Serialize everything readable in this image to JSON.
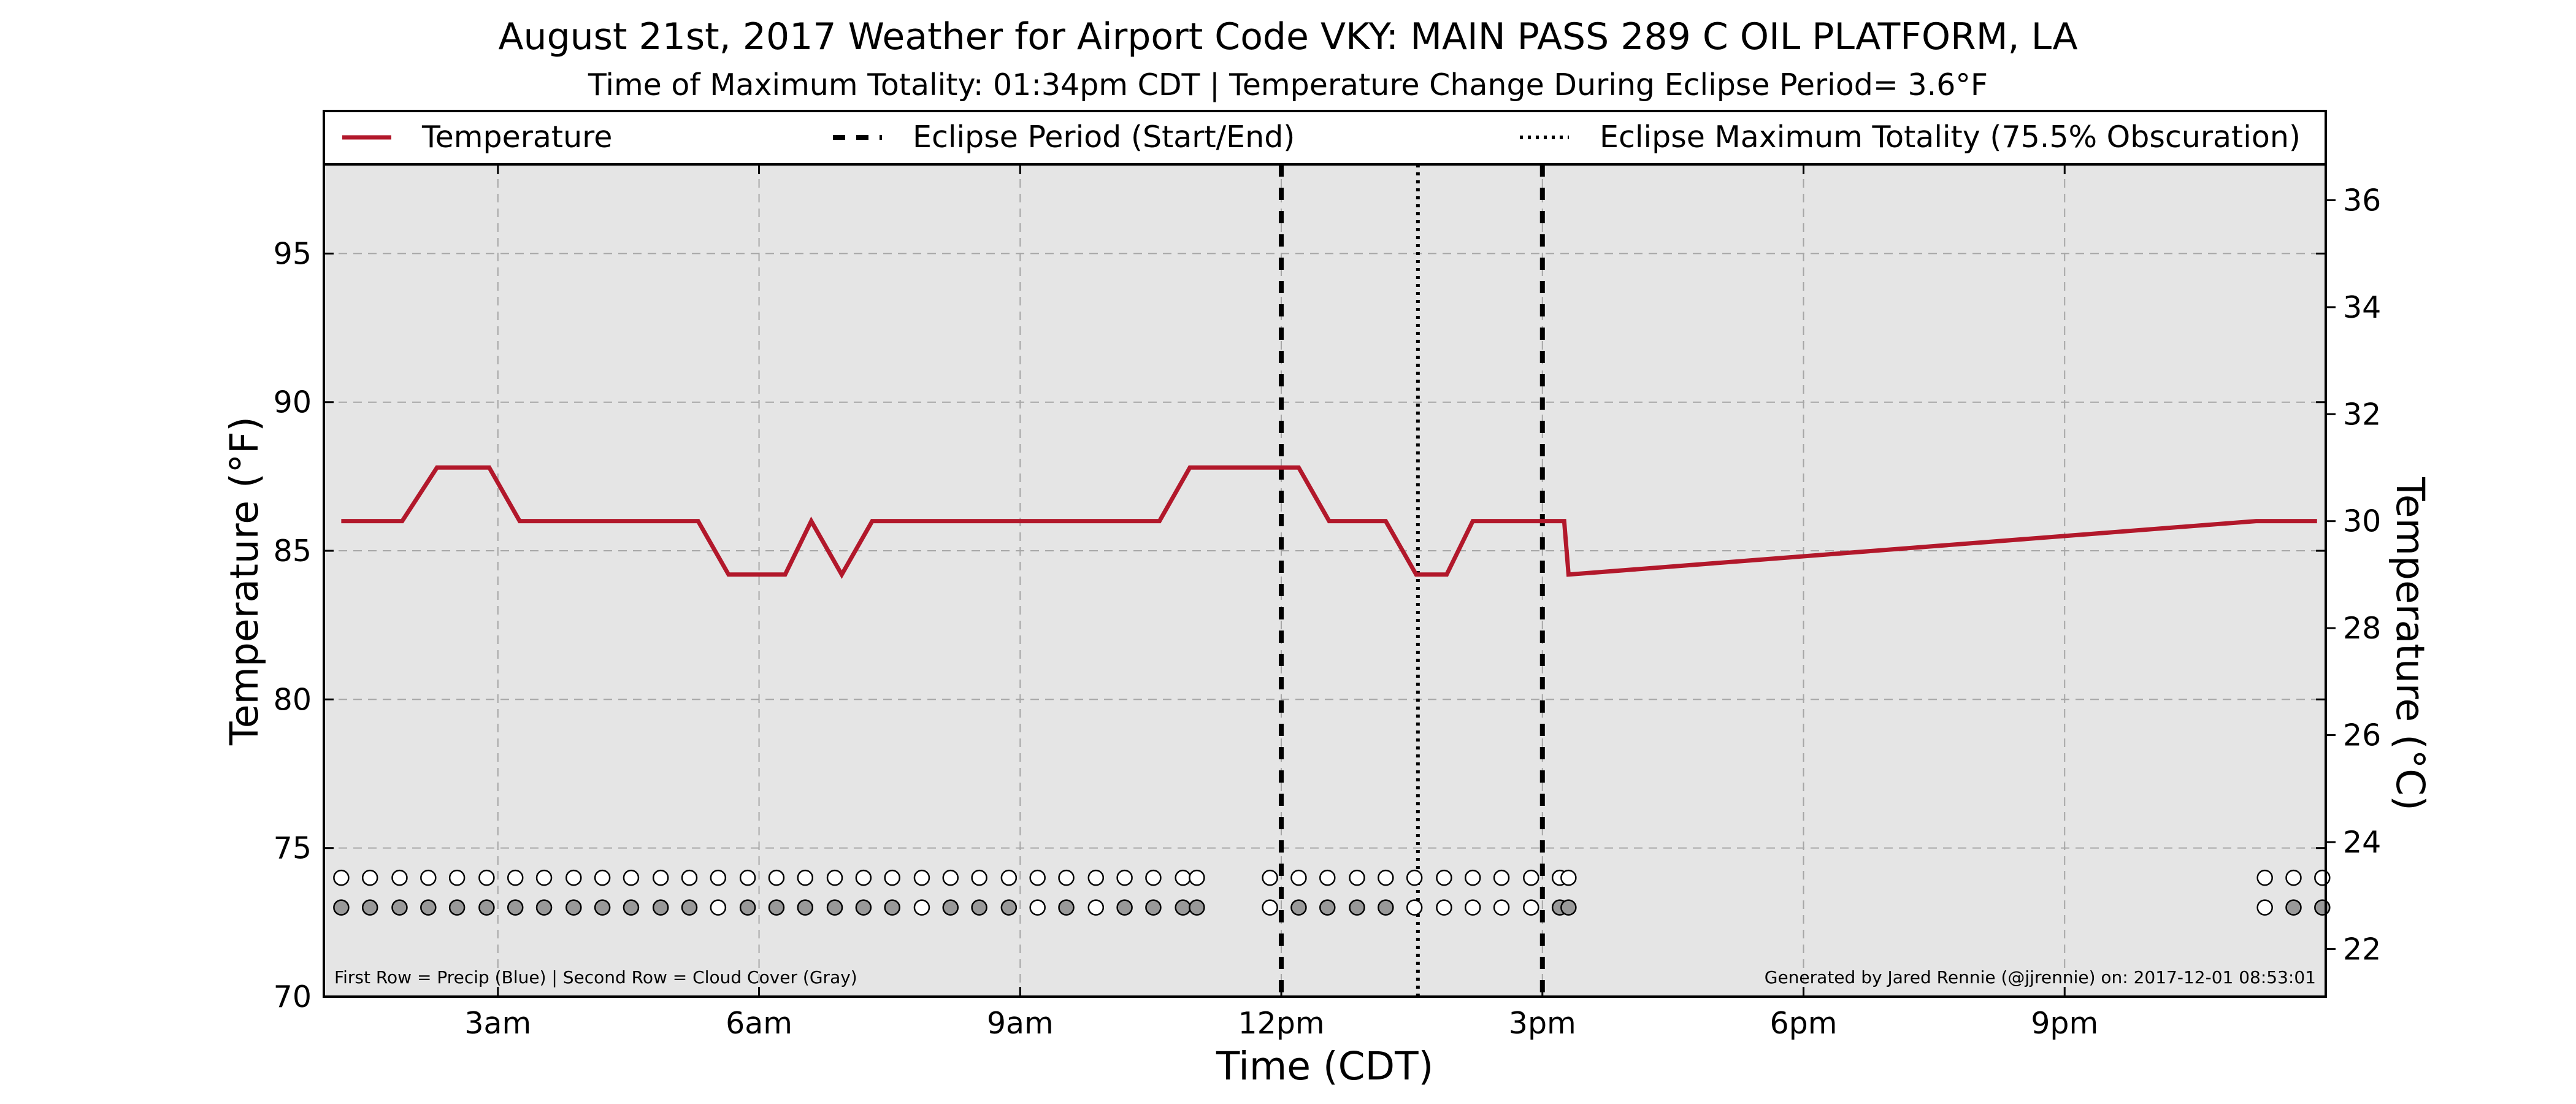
{
  "chart_data": {
    "type": "line",
    "title": "August 21st, 2017 Weather for Airport Code VKY: MAIN PASS 289 C OIL PLATFORM, LA",
    "subtitle": "Time of Maximum Totality: 01:34pm CDT | Temperature Change During Eclipse Period= 3.6°F",
    "xlabel": "Time (CDT)",
    "ylabel_left": "Temperature (°F)",
    "ylabel_right": "Temperature (°C)",
    "x_unit": "hours since midnight CDT",
    "xlim": [
      1.0,
      24.0
    ],
    "ylim": [
      70,
      98
    ],
    "ylim_celsius": [
      21.11,
      36.67
    ],
    "x_ticks": [
      {
        "value": 3,
        "label": "3am"
      },
      {
        "value": 6,
        "label": "6am"
      },
      {
        "value": 9,
        "label": "9am"
      },
      {
        "value": 12,
        "label": "12pm"
      },
      {
        "value": 15,
        "label": "3pm"
      },
      {
        "value": 18,
        "label": "6pm"
      },
      {
        "value": 21,
        "label": "9pm"
      }
    ],
    "y_ticks_left": [
      70,
      75,
      80,
      85,
      90,
      95
    ],
    "y_ticks_right": [
      22,
      24,
      26,
      28,
      30,
      32,
      34,
      36
    ],
    "grid": true,
    "legend_position": "top, above plot",
    "legend": [
      {
        "label": "Temperature",
        "style": "solid",
        "color": "#b2182b"
      },
      {
        "label": "Eclipse Period (Start/End)",
        "style": "dashed",
        "color": "#000000"
      },
      {
        "label": "Eclipse Maximum Totality (75.5% Obscuration)",
        "style": "dotted",
        "color": "#000000"
      }
    ],
    "series": [
      {
        "name": "Temperature",
        "color": "#b2182b",
        "x": [
          1.2,
          1.9,
          2.3,
          2.9,
          3.25,
          5.3,
          5.65,
          6.3,
          6.6,
          6.95,
          7.3,
          10.6,
          10.95,
          12.2,
          12.55,
          13.2,
          13.55,
          13.9,
          14.2,
          14.85,
          15.25,
          15.3,
          23.2,
          23.9
        ],
        "y": [
          86.0,
          86.0,
          87.8,
          87.8,
          86.0,
          86.0,
          84.2,
          84.2,
          86.0,
          84.2,
          86.0,
          86.0,
          87.8,
          87.8,
          86.0,
          86.0,
          84.2,
          84.2,
          86.0,
          86.0,
          86.0,
          84.2,
          86.0,
          86.0
        ]
      }
    ],
    "eclipse_start": 12.0,
    "eclipse_end": 15.0,
    "eclipse_max": 13.57,
    "observation_markers": {
      "y_row_precip": 74,
      "y_row_cloud": 73,
      "precip_color": "#ffffff",
      "cloud_colors": {
        "clear": "#ffffff",
        "cloudy": "#999999"
      },
      "points": [
        {
          "x": 1.2,
          "cloud": "cloudy"
        },
        {
          "x": 1.53,
          "cloud": "cloudy"
        },
        {
          "x": 1.87,
          "cloud": "cloudy"
        },
        {
          "x": 2.2,
          "cloud": "cloudy"
        },
        {
          "x": 2.53,
          "cloud": "cloudy"
        },
        {
          "x": 2.87,
          "cloud": "cloudy"
        },
        {
          "x": 3.2,
          "cloud": "cloudy"
        },
        {
          "x": 3.53,
          "cloud": "cloudy"
        },
        {
          "x": 3.87,
          "cloud": "cloudy"
        },
        {
          "x": 4.2,
          "cloud": "cloudy"
        },
        {
          "x": 4.53,
          "cloud": "cloudy"
        },
        {
          "x": 4.87,
          "cloud": "cloudy"
        },
        {
          "x": 5.2,
          "cloud": "cloudy"
        },
        {
          "x": 5.53,
          "cloud": "clear"
        },
        {
          "x": 5.87,
          "cloud": "cloudy"
        },
        {
          "x": 6.2,
          "cloud": "cloudy"
        },
        {
          "x": 6.53,
          "cloud": "cloudy"
        },
        {
          "x": 6.87,
          "cloud": "cloudy"
        },
        {
          "x": 7.2,
          "cloud": "cloudy"
        },
        {
          "x": 7.53,
          "cloud": "cloudy"
        },
        {
          "x": 7.87,
          "cloud": "clear"
        },
        {
          "x": 8.2,
          "cloud": "cloudy"
        },
        {
          "x": 8.53,
          "cloud": "cloudy"
        },
        {
          "x": 8.87,
          "cloud": "cloudy"
        },
        {
          "x": 9.2,
          "cloud": "clear"
        },
        {
          "x": 9.53,
          "cloud": "cloudy"
        },
        {
          "x": 9.87,
          "cloud": "clear"
        },
        {
          "x": 10.2,
          "cloud": "cloudy"
        },
        {
          "x": 10.53,
          "cloud": "cloudy"
        },
        {
          "x": 10.87,
          "cloud": "cloudy"
        },
        {
          "x": 11.03,
          "cloud": "cloudy"
        },
        {
          "x": 11.87,
          "cloud": "clear"
        },
        {
          "x": 12.2,
          "cloud": "cloudy"
        },
        {
          "x": 12.53,
          "cloud": "cloudy"
        },
        {
          "x": 12.87,
          "cloud": "cloudy"
        },
        {
          "x": 13.2,
          "cloud": "cloudy"
        },
        {
          "x": 13.53,
          "cloud": "clear"
        },
        {
          "x": 13.87,
          "cloud": "clear"
        },
        {
          "x": 14.2,
          "cloud": "clear"
        },
        {
          "x": 14.53,
          "cloud": "clear"
        },
        {
          "x": 14.87,
          "cloud": "clear"
        },
        {
          "x": 15.2,
          "cloud": "cloudy"
        },
        {
          "x": 15.3,
          "cloud": "cloudy"
        },
        {
          "x": 23.3,
          "cloud": "clear"
        },
        {
          "x": 23.63,
          "cloud": "cloudy"
        },
        {
          "x": 23.96,
          "cloud": "cloudy"
        }
      ]
    },
    "annotations": [
      "First Row = Precip (Blue) | Second Row = Cloud Cover (Gray)",
      "Generated by Jared Rennie (@jjrennie) on: 2017-12-01 08:53:01"
    ]
  }
}
